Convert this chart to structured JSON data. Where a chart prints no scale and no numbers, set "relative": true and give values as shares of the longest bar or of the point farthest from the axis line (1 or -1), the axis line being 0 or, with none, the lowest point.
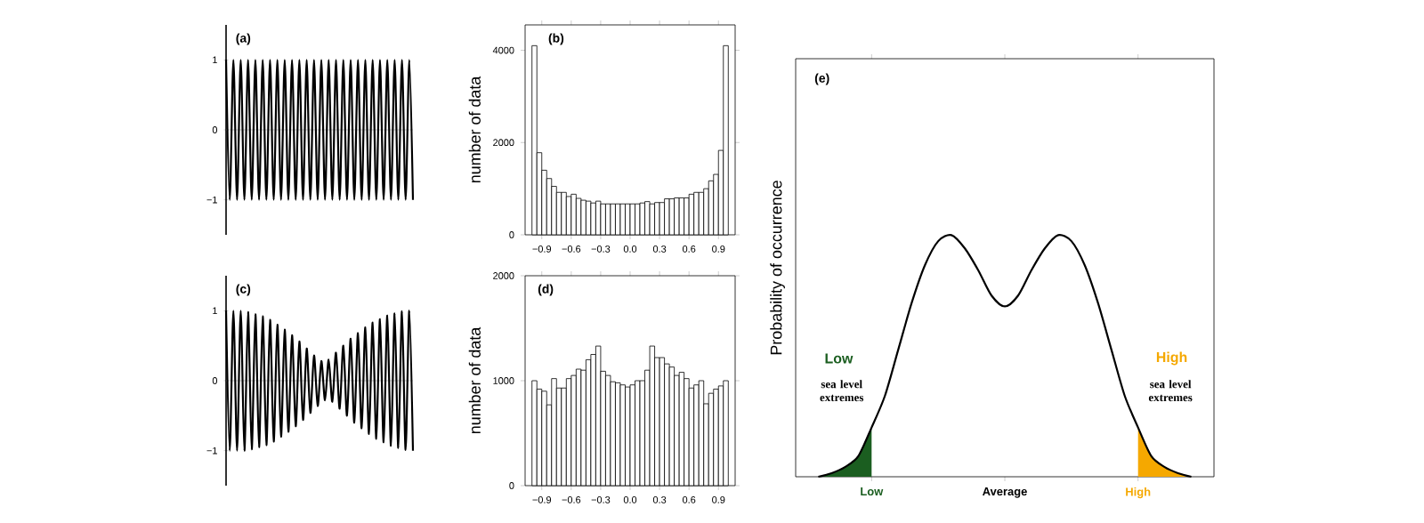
{
  "chart_data": [
    {
      "type": "line",
      "categories": [
        null,
        null,
        null,
        null,
        null,
        null,
        null,
        null,
        null,
        null,
        null,
        null,
        null,
        null,
        null,
        null,
        null,
        null,
        null,
        null,
        null,
        null,
        null,
        null,
        null,
        null,
        null,
        null,
        null,
        null,
        null,
        null,
        null,
        null,
        null,
        null,
        null,
        null,
        null,
        null,
        null,
        null,
        null,
        null,
        null,
        null,
        null,
        null,
        null,
        null,
        null,
        null
      ],
      "values": [
        1,
        -1,
        1,
        -1,
        1,
        -1,
        1,
        -1,
        1,
        -1,
        1,
        -1,
        1,
        -1,
        1,
        -1,
        1,
        -1,
        1,
        -1,
        1,
        -1,
        1,
        -1,
        1,
        -1,
        1,
        -1,
        1,
        -1,
        1,
        -1,
        1,
        -1,
        1,
        -1,
        1,
        -1,
        1,
        -1,
        1,
        -1,
        1,
        -1,
        1,
        -1,
        1,
        -1,
        1,
        -1,
        1,
        -1
      ],
      "color": "#000000",
      "ylim": [
        -1.5,
        1.5
      ],
      "yticks": [
        {
          "value": -1,
          "label": "−1"
        },
        0,
        1
      ],
      "tick_labels": "y",
      "ref_lines": [
        {
          "axis": "y",
          "value": 0,
          "color": "#a0a0a0"
        }
      ],
      "annotations": [
        "(a)"
      ]
    },
    {
      "type": "histogram",
      "bins": [
        -1,
        -0.95,
        -0.9,
        -0.85,
        -0.8,
        -0.75,
        -0.7,
        -0.65,
        -0.6,
        -0.55,
        -0.5,
        -0.45,
        -0.4,
        -0.35,
        -0.3,
        -0.25,
        -0.2,
        -0.15,
        -0.1,
        -0.05,
        0,
        0.05,
        0.1,
        0.15,
        0.2,
        0.25,
        0.3,
        0.35,
        0.4,
        0.45,
        0.5,
        0.55,
        0.6,
        0.65,
        0.7,
        0.75,
        0.8,
        0.85,
        0.9,
        0.95,
        1
      ],
      "values": [
        4100,
        1780,
        1400,
        1220,
        1050,
        920,
        920,
        830,
        880,
        790,
        750,
        730,
        690,
        730,
        670,
        670,
        670,
        670,
        670,
        670,
        670,
        670,
        690,
        720,
        670,
        700,
        700,
        780,
        780,
        800,
        800,
        800,
        880,
        920,
        920,
        1000,
        1170,
        1310,
        1830,
        4100
      ],
      "color": "#ffffff",
      "xlim": [
        -1.07,
        1.07
      ],
      "ylim": [
        0,
        4550
      ],
      "xticks": [
        {
          "value": -0.9,
          "label": "−0.9"
        },
        {
          "value": -0.6,
          "label": "−0.6"
        },
        {
          "value": -0.3,
          "label": "−0.3"
        },
        {
          "value": 0,
          "label": "0.0"
        },
        0.3,
        0.6,
        0.9
      ],
      "yticks": [
        0,
        2000,
        4000
      ],
      "ylabel": "number of data",
      "annotations": [
        "(b)"
      ]
    },
    {
      "type": "line",
      "categories": [
        null,
        null,
        null,
        null,
        null,
        null,
        null,
        null,
        null,
        null,
        null,
        null,
        null,
        null,
        null,
        null,
        null,
        null,
        null,
        null,
        null,
        null,
        null,
        null,
        null,
        null,
        null,
        null,
        null,
        null,
        null,
        null,
        null,
        null,
        null,
        null,
        null,
        null,
        null,
        null,
        null,
        null,
        null,
        null,
        null,
        null,
        null,
        null,
        null,
        null,
        null,
        null
      ],
      "values": [
        1,
        -1,
        1,
        -1,
        1,
        -1,
        0.98,
        -0.98,
        0.95,
        -0.95,
        0.92,
        -0.92,
        0.87,
        -0.87,
        0.8,
        -0.8,
        0.73,
        -0.73,
        0.65,
        -0.65,
        0.56,
        -0.56,
        0.46,
        -0.46,
        0.36,
        -0.36,
        0.28,
        -0.28,
        0.3,
        -0.3,
        0.4,
        -0.4,
        0.5,
        -0.5,
        0.6,
        -0.6,
        0.68,
        -0.68,
        0.76,
        -0.76,
        0.83,
        -0.83,
        0.88,
        -0.88,
        0.93,
        -0.93,
        0.96,
        -0.96,
        0.99,
        -0.99,
        1,
        -1
      ],
      "color": "#000000",
      "ylim": [
        -1.5,
        1.5
      ],
      "yticks": [
        {
          "value": -1,
          "label": "−1"
        },
        0,
        1
      ],
      "tick_labels": "y",
      "ref_lines": [
        {
          "axis": "y",
          "value": 0,
          "color": "#a0a0a0"
        }
      ],
      "annotations": [
        "(c)"
      ]
    },
    {
      "type": "histogram",
      "bins": [
        -1,
        -0.95,
        -0.9,
        -0.85,
        -0.8,
        -0.75,
        -0.7,
        -0.65,
        -0.6,
        -0.55,
        -0.5,
        -0.45,
        -0.4,
        -0.35,
        -0.3,
        -0.25,
        -0.2,
        -0.15,
        -0.1,
        -0.05,
        0,
        0.05,
        0.1,
        0.15,
        0.2,
        0.25,
        0.3,
        0.35,
        0.4,
        0.45,
        0.5,
        0.55,
        0.6,
        0.65,
        0.7,
        0.75,
        0.8,
        0.85,
        0.9,
        0.95,
        1
      ],
      "values": [
        1000,
        920,
        900,
        770,
        1020,
        930,
        930,
        1020,
        1050,
        1110,
        1100,
        1200,
        1250,
        1330,
        1090,
        1050,
        990,
        980,
        960,
        940,
        960,
        1000,
        1000,
        1100,
        1330,
        1220,
        1220,
        1160,
        1130,
        1050,
        1080,
        1020,
        930,
        960,
        1000,
        780,
        880,
        920,
        950,
        1000
      ],
      "color": "#ffffff",
      "xlim": [
        -1.07,
        1.07
      ],
      "ylim": [
        0,
        2000
      ],
      "xticks": [
        {
          "value": -0.9,
          "label": "−0.9"
        },
        {
          "value": -0.6,
          "label": "−0.6"
        },
        {
          "value": -0.3,
          "label": "−0.3"
        },
        {
          "value": 0,
          "label": "0.0"
        },
        0.3,
        0.6,
        0.9
      ],
      "yticks": [
        0,
        1000,
        2000
      ],
      "ylabel": "number of data",
      "annotations": [
        "(d)"
      ]
    },
    {
      "type": "line",
      "relative": true,
      "categories": [
        null,
        null,
        null,
        null,
        "Low",
        null,
        null,
        null,
        null,
        null,
        null,
        null,
        null,
        null,
        "Average",
        null,
        null,
        null,
        null,
        null,
        null,
        null,
        null,
        null,
        "High",
        null,
        null,
        null,
        null
      ],
      "ylabel": "Probability of occurrence",
      "series": [
        {
          "color": "#000000",
          "values": [
            0,
            0.015,
            0.04,
            0.085,
            0.204,
            0.335,
            0.526,
            0.718,
            0.875,
            0.975,
            1,
            0.945,
            0.855,
            0.75,
            0.705,
            0.75,
            0.855,
            0.945,
            1,
            0.975,
            0.875,
            0.718,
            0.526,
            0.335,
            0.204,
            0.085,
            0.04,
            0.015,
            0
          ]
        },
        {
          "type": "area",
          "color": "#1b5e20",
          "values": [
            0,
            0.015,
            0.04,
            0.085,
            0.204,
            null,
            null,
            null,
            null,
            null,
            null,
            null,
            null,
            null,
            null,
            null,
            null,
            null,
            null,
            null,
            null,
            null,
            null,
            null,
            null,
            null,
            null,
            null,
            null
          ]
        },
        {
          "type": "area",
          "color": "#f5a800",
          "values": [
            null,
            null,
            null,
            null,
            null,
            null,
            null,
            null,
            null,
            null,
            null,
            null,
            null,
            null,
            null,
            null,
            null,
            null,
            null,
            null,
            null,
            null,
            null,
            null,
            0.204,
            0.085,
            0.04,
            0.015,
            0
          ]
        }
      ],
      "annotations": [
        "(e)",
        "Low",
        "sea level extremes",
        "High",
        "sea level extremes"
      ]
    }
  ]
}
